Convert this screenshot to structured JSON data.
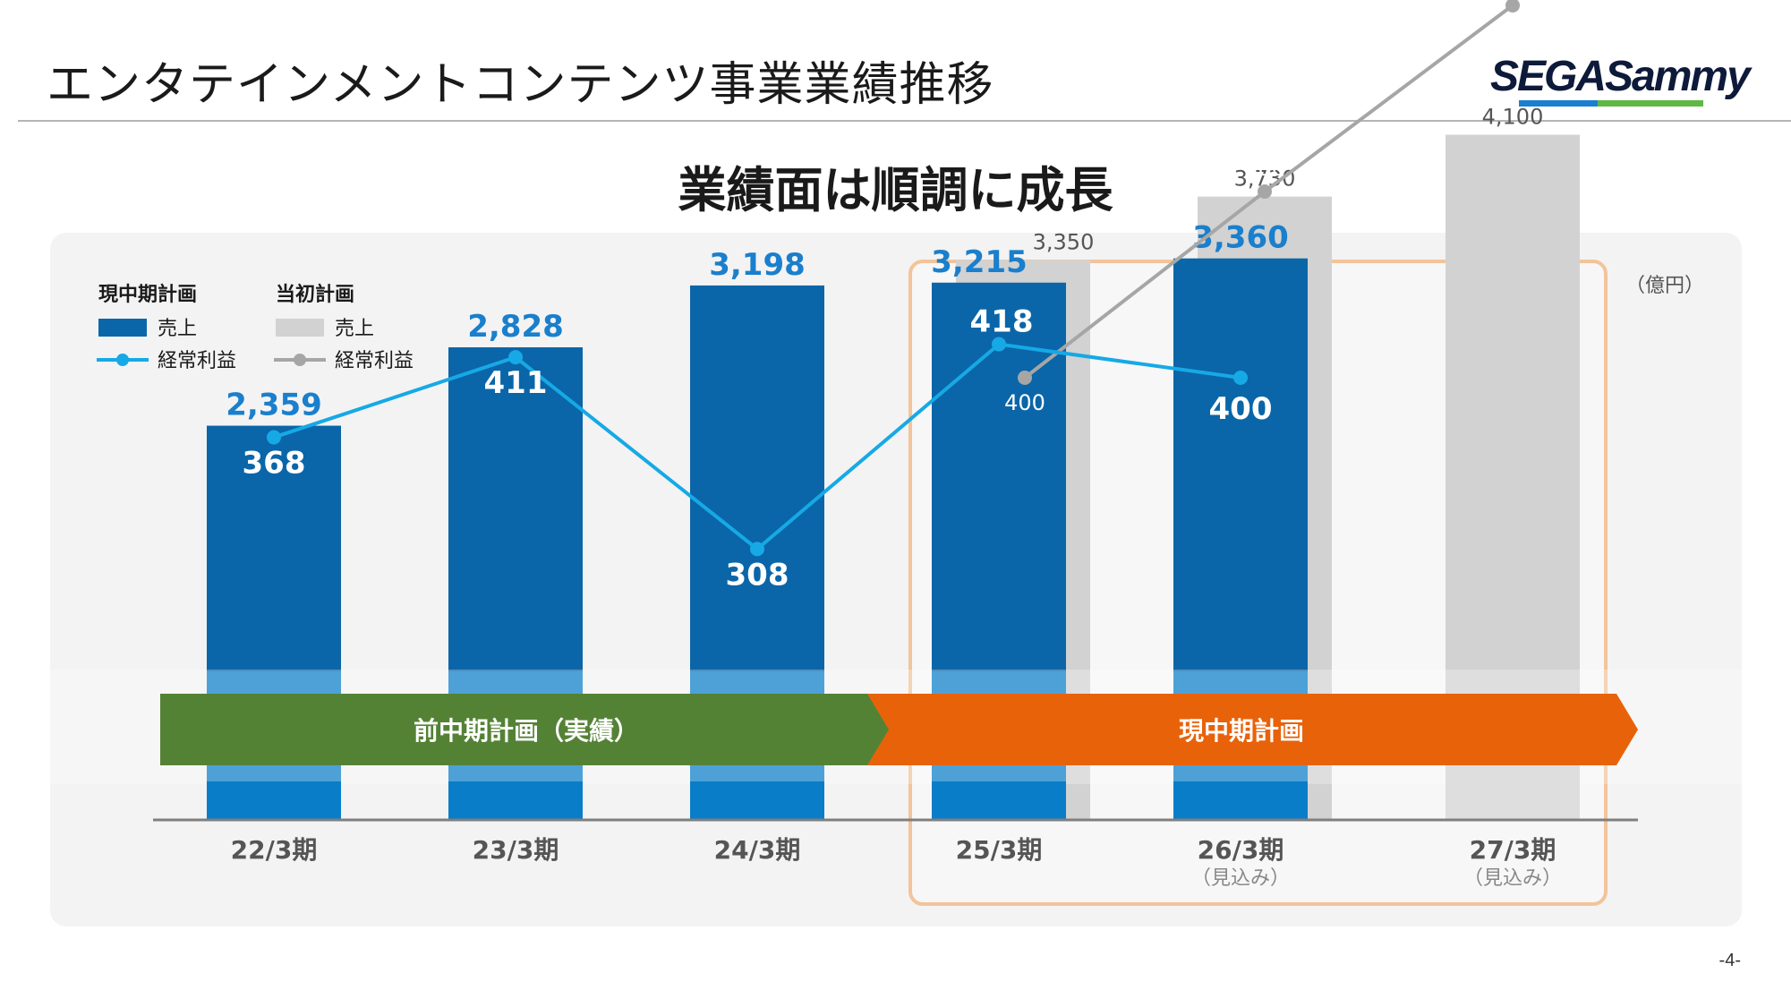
{
  "header": {
    "title": "エンタテインメントコンテンツ事業業績推移",
    "logo_text": "SEGASammy",
    "headline": "業績面は順調に成長",
    "page_number": "-4-"
  },
  "colors": {
    "current_sales": "#0a66a8",
    "current_profit_line": "#16a9e6",
    "initial_sales": "#d2d2d2",
    "initial_profit_line": "#a6a6a6",
    "value_label_blue": "#1a7fcc",
    "arrow_previous": "#548235",
    "arrow_current": "#e8620a",
    "highlight_border": "#f2c49a"
  },
  "chart_data": {
    "type": "bar",
    "unit": "（億円）",
    "categories": [
      "22/3期",
      "23/3期",
      "24/3期",
      "25/3期",
      "26/3期",
      "27/3期"
    ],
    "category_notes": [
      "",
      "",
      "",
      "",
      "（見込み）",
      "（見込み）"
    ],
    "legend": {
      "group_current": "現中期計画",
      "group_initial": "当初計画",
      "sales": "売上",
      "profit": "経常利益"
    },
    "series": [
      {
        "name": "売上",
        "group": "現中期計画",
        "kind": "bar",
        "values": [
          2359,
          2828,
          3198,
          3215,
          3360,
          null
        ],
        "labels": [
          "2,359",
          "2,828",
          "3,198",
          "3,215",
          "3,360",
          ""
        ]
      },
      {
        "name": "経常利益",
        "group": "現中期計画",
        "kind": "line",
        "values": [
          368,
          411,
          308,
          418,
          400,
          null
        ],
        "labels": [
          "368",
          "411",
          "308",
          "418",
          "400",
          ""
        ]
      },
      {
        "name": "売上",
        "group": "当初計画",
        "kind": "bar",
        "values": [
          null,
          null,
          null,
          3350,
          3730,
          4100
        ],
        "labels": [
          "",
          "",
          "",
          "3,350",
          "3,730",
          "4,100"
        ]
      },
      {
        "name": "経常利益",
        "group": "当初計画",
        "kind": "line",
        "values": [
          null,
          null,
          null,
          400,
          500,
          600
        ],
        "labels": [
          "",
          "",
          "",
          "400",
          "500",
          "600"
        ]
      }
    ],
    "phases": [
      {
        "label": "前中期計画（実績）",
        "from": "22/3期",
        "to": "24/3期"
      },
      {
        "label": "現中期計画",
        "from": "25/3期",
        "to": "27/3期"
      }
    ]
  }
}
